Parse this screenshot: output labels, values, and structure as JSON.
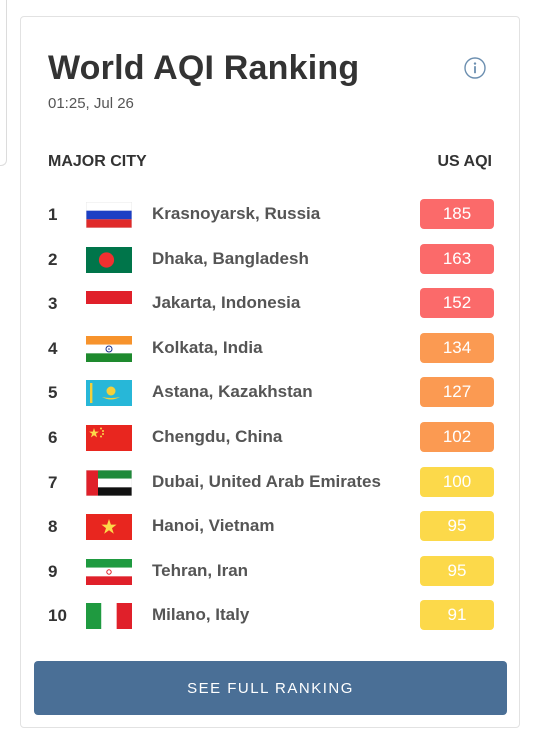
{
  "widget": {
    "title": "World AQI Ranking",
    "timestamp": "01:25, Jul 26",
    "column_city": "MAJOR CITY",
    "column_aqi": "US AQI",
    "button_label": "SEE FULL RANKING"
  },
  "colors": {
    "unhealthy": "#fb6a6a",
    "sensitive": "#fb9a52",
    "moderate": "#fcd94a",
    "button": "#4a6f96"
  },
  "rankings": [
    {
      "rank": "1",
      "city": "Krasnoyarsk, Russia",
      "aqi": "185",
      "level": "unhealthy",
      "flag": "russia-flag-icon"
    },
    {
      "rank": "2",
      "city": "Dhaka, Bangladesh",
      "aqi": "163",
      "level": "unhealthy",
      "flag": "bangladesh-flag-icon"
    },
    {
      "rank": "3",
      "city": "Jakarta, Indonesia",
      "aqi": "152",
      "level": "unhealthy",
      "flag": "indonesia-flag-icon"
    },
    {
      "rank": "4",
      "city": "Kolkata, India",
      "aqi": "134",
      "level": "sensitive",
      "flag": "india-flag-icon"
    },
    {
      "rank": "5",
      "city": "Astana, Kazakhstan",
      "aqi": "127",
      "level": "sensitive",
      "flag": "kazakhstan-flag-icon"
    },
    {
      "rank": "6",
      "city": "Chengdu, China",
      "aqi": "102",
      "level": "sensitive",
      "flag": "china-flag-icon"
    },
    {
      "rank": "7",
      "city": "Dubai, United Arab Emirates",
      "aqi": "100",
      "level": "moderate",
      "flag": "uae-flag-icon"
    },
    {
      "rank": "8",
      "city": "Hanoi, Vietnam",
      "aqi": "95",
      "level": "moderate",
      "flag": "vietnam-flag-icon"
    },
    {
      "rank": "9",
      "city": "Tehran, Iran",
      "aqi": "95",
      "level": "moderate",
      "flag": "iran-flag-icon"
    },
    {
      "rank": "10",
      "city": "Milano, Italy",
      "aqi": "91",
      "level": "moderate",
      "flag": "italy-flag-icon"
    }
  ]
}
